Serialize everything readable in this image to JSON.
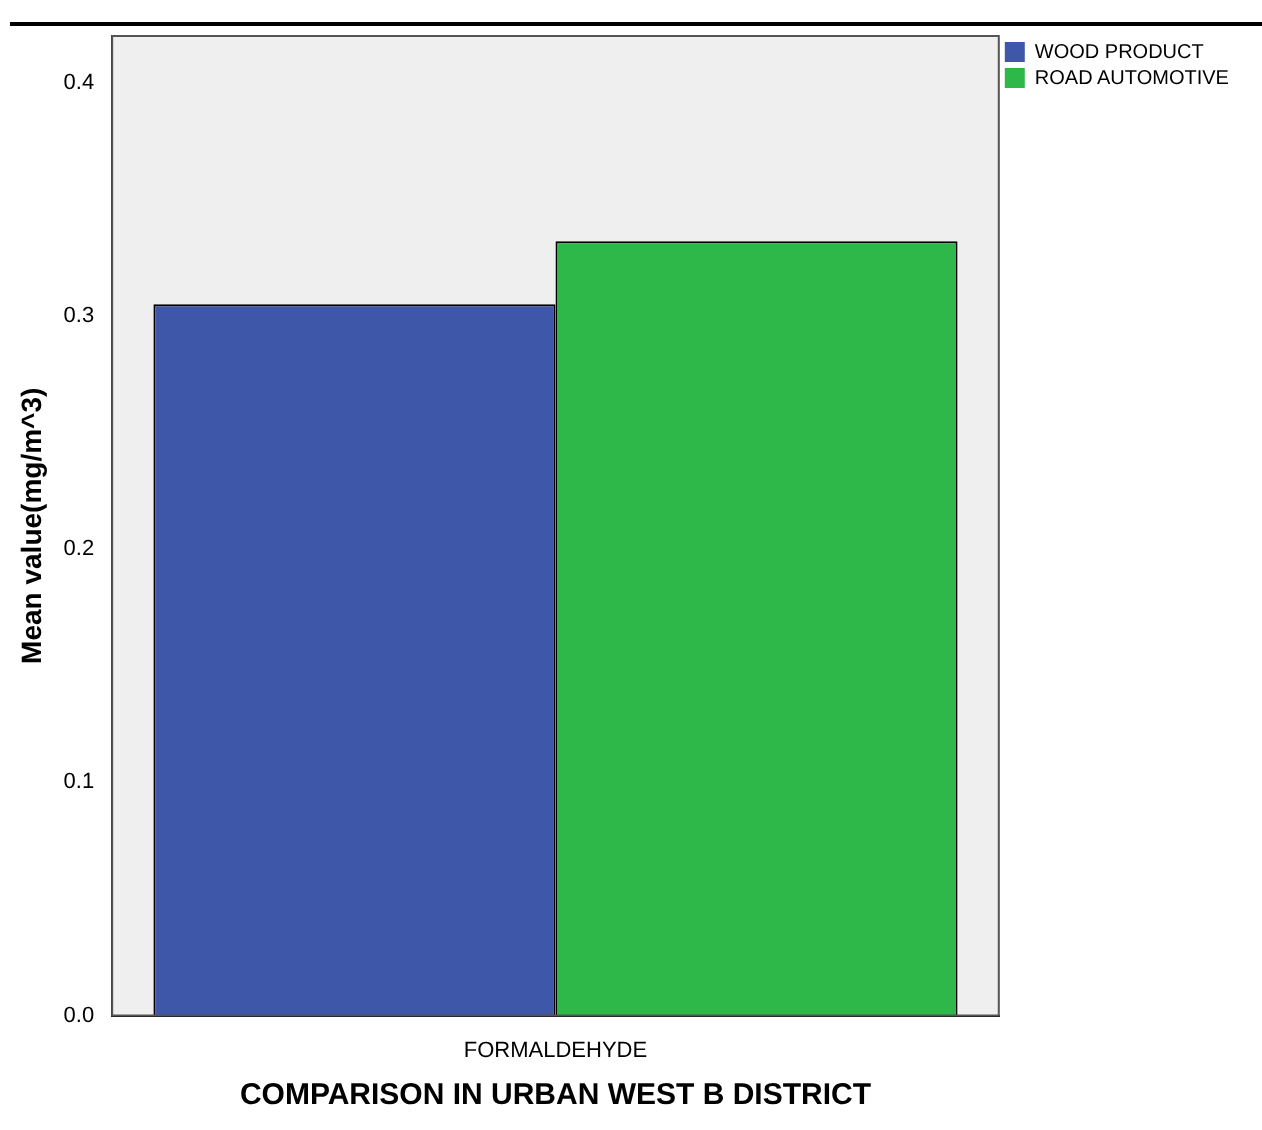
{
  "chart_data": {
    "type": "bar",
    "xlabel": "COMPARISON IN URBAN WEST B DISTRICT",
    "ylabel": "Mean value(mg/m^3)",
    "categories": [
      "FORMALDEHYDE"
    ],
    "series": [
      {
        "name": "WOOD PRODUCT",
        "color": "#3f57a8",
        "values": [
          0.305
        ]
      },
      {
        "name": "ROAD AUTOMOTIVE",
        "color": "#2fb84a",
        "values": [
          0.332
        ]
      }
    ],
    "ylim": [
      0,
      0.42
    ],
    "yticks": [
      {
        "value": 0,
        "label": "0.0"
      },
      {
        "value": 0.1,
        "label": "0.1"
      },
      {
        "value": 0.2,
        "label": "0.2"
      },
      {
        "value": 0.3,
        "label": "0.3"
      },
      {
        "value": 0.4,
        "label": "0.4"
      }
    ],
    "grid": false,
    "legend": "top right"
  }
}
